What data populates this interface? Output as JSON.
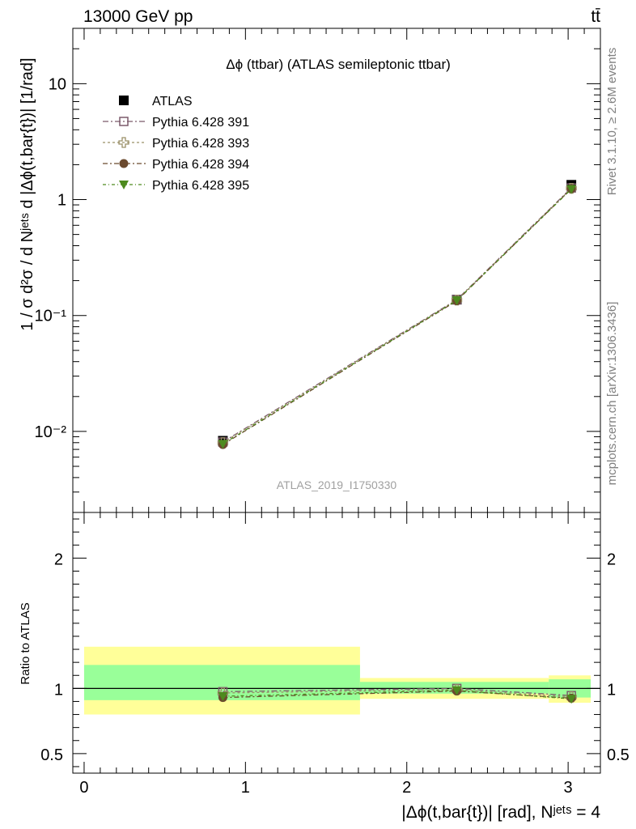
{
  "header": {
    "energy_label": "13000 GeV pp",
    "process_label": "tt̄"
  },
  "side": {
    "rivet_label": "Rivet 3.1.10, ≥ 2.6M events",
    "mcplots_label": "mcplots.cern.ch [arXiv:1306.3436]"
  },
  "chart_data": [
    {
      "type": "scatter",
      "title": "Δϕ (ttbar) (ATLAS semileptonic ttbar)",
      "watermark": "ATLAS_2019_I1750330",
      "ylabel": "1 / σ d²σ / d Nʲᵉᵗˢ d |Δϕ(t,bar{t})| [1/rad]",
      "yscale": "log",
      "ylim": [
        0.002,
        30
      ],
      "xlim": [
        -0.07,
        3.2
      ],
      "y_tick_labels": [
        "10⁻²",
        "10⁻¹",
        "1",
        "10"
      ],
      "legend_position": "top-left",
      "x": [
        0.86,
        2.31,
        3.02
      ],
      "series": [
        {
          "name": "ATLAS",
          "color": "#000000",
          "marker": "square-filled",
          "values": [
            0.0083,
            0.137,
            1.34
          ]
        },
        {
          "name": "Pythia 6.428 391",
          "color": "#7b5a6b",
          "marker": "square-open",
          "values": [
            0.0081,
            0.137,
            1.26
          ]
        },
        {
          "name": "Pythia 6.428 393",
          "color": "#9a9068",
          "marker": "cross-open",
          "values": [
            0.008,
            0.136,
            1.25
          ]
        },
        {
          "name": "Pythia 6.428 394",
          "color": "#6b4a2e",
          "marker": "circle-filled",
          "values": [
            0.0077,
            0.134,
            1.24
          ]
        },
        {
          "name": "Pythia 6.428 395",
          "color": "#4d8a1e",
          "marker": "triangle-down-filled",
          "values": [
            0.0078,
            0.135,
            1.23
          ]
        }
      ]
    },
    {
      "type": "scatter",
      "ylabel": "Ratio to ATLAS",
      "xlabel": "|Δϕ(t,bar{t})| [rad], Nʲᵉᵗˢ = 4",
      "ylim": [
        0.35,
        2.35
      ],
      "xlim": [
        -0.07,
        3.2
      ],
      "y_tick_labels": [
        "0.5",
        "1",
        "2"
      ],
      "x_tick_labels": [
        "0",
        "1",
        "2",
        "3"
      ],
      "reference_line": 1.0,
      "bins": [
        {
          "x_low": 0.0,
          "x_high": 1.71,
          "band_inner": [
            0.91,
            1.18
          ],
          "band_outer": [
            0.8,
            1.32
          ]
        },
        {
          "x_low": 1.71,
          "x_high": 2.88,
          "band_inner": [
            0.96,
            1.05
          ],
          "band_outer": [
            0.92,
            1.08
          ]
        },
        {
          "x_low": 2.88,
          "x_high": 3.14,
          "band_inner": [
            0.93,
            1.07
          ],
          "band_outer": [
            0.89,
            1.1
          ]
        }
      ],
      "x": [
        0.86,
        2.31,
        3.02
      ],
      "series": [
        {
          "name": "Pythia 6.428 391",
          "values": [
            0.975,
            1.0,
            0.945
          ]
        },
        {
          "name": "Pythia 6.428 393",
          "values": [
            0.965,
            0.99,
            0.935
          ]
        },
        {
          "name": "Pythia 6.428 394",
          "values": [
            0.93,
            0.98,
            0.925
          ]
        },
        {
          "name": "Pythia 6.428 395",
          "values": [
            0.94,
            0.985,
            0.92
          ]
        }
      ]
    }
  ],
  "colors": {
    "band_inner": "#99ff99",
    "band_outer": "#ffff99",
    "watermark": "#a0a0a0",
    "side_text": "#808080"
  }
}
